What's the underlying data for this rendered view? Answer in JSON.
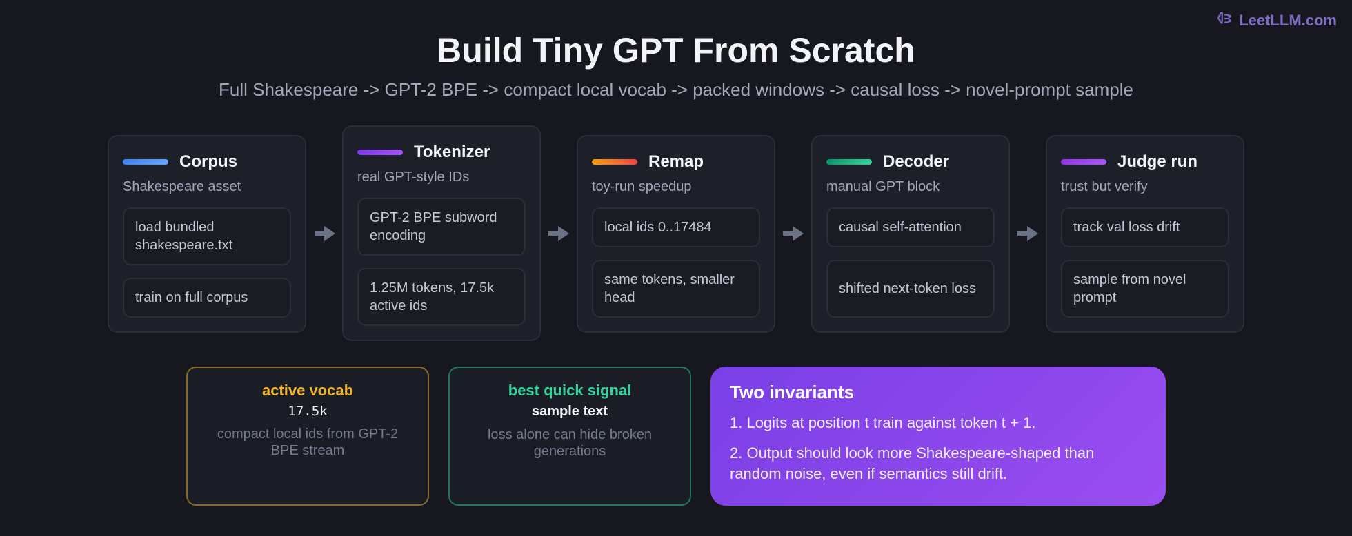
{
  "brand": {
    "label": "LeetLLM.com",
    "icon": "brain-icon"
  },
  "header": {
    "title": "Build Tiny GPT From Scratch",
    "subtitle": "Full Shakespeare -> GPT-2 BPE -> compact local vocab -> packed windows -> causal loss -> novel-prompt sample"
  },
  "stages": [
    {
      "title": "Corpus",
      "subtitle": "Shakespeare asset",
      "accent": "#3b82f6",
      "steps": [
        "load bundled shakespeare.txt",
        "train on full corpus"
      ]
    },
    {
      "title": "Tokenizer",
      "subtitle": "real GPT-style IDs",
      "accent": "#8b5cf6",
      "steps": [
        "GPT-2 BPE subword encoding",
        "1.25M tokens, 17.5k active ids"
      ]
    },
    {
      "title": "Remap",
      "subtitle": "toy-run speedup",
      "accent": "#f97316",
      "steps": [
        "local ids 0..17484",
        "same tokens, smaller head"
      ]
    },
    {
      "title": "Decoder",
      "subtitle": "manual GPT block",
      "accent": "#10b981",
      "steps": [
        "causal self-attention",
        "shifted next-token loss"
      ]
    },
    {
      "title": "Judge run",
      "subtitle": "trust but verify",
      "accent": "#a855f7",
      "steps": [
        "track val loss drift",
        "sample from novel prompt"
      ]
    }
  ],
  "stats": [
    {
      "label": "active vocab",
      "value": "17.5k",
      "description": "compact local ids from GPT-2 BPE stream",
      "color": "#f0b429"
    },
    {
      "label": "best quick signal",
      "value": "sample text",
      "description": "loss alone can hide broken generations",
      "color": "#34d399"
    }
  ],
  "invariants": {
    "title": "Two invariants",
    "items": [
      "1. Logits at position t train against token t + 1.",
      "2. Output should look more Shakespeare-shaped than random noise, even if semantics still drift."
    ]
  }
}
